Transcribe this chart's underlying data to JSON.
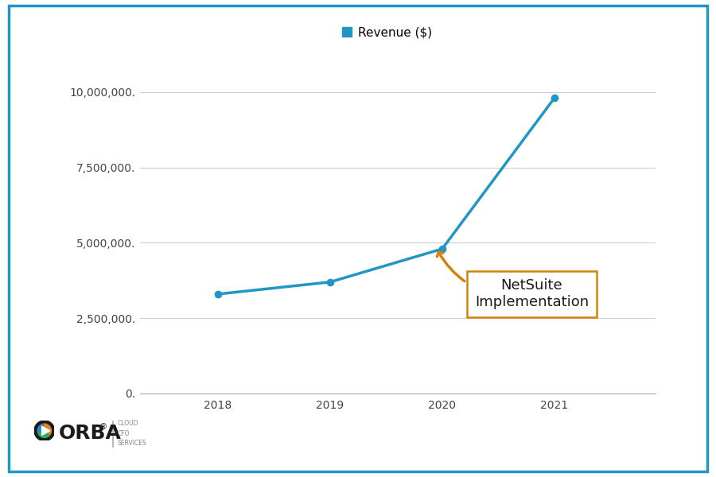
{
  "years": [
    2018,
    2019,
    2020,
    2021
  ],
  "revenue": [
    3300000,
    3700000,
    4800000,
    9800000
  ],
  "line_color": "#2196C4",
  "line_width": 2.5,
  "marker_size": 6,
  "legend_label": "Revenue ($)",
  "ylim": [
    0,
    11000000
  ],
  "yticks": [
    0,
    2500000,
    5000000,
    7500000,
    10000000
  ],
  "ytick_labels": [
    "0.",
    "2,500,000.",
    "5,000,000.",
    "7,500,000.",
    "10,000,000."
  ],
  "xticks": [
    2018,
    2019,
    2020,
    2021
  ],
  "annotation_text": "NetSuite\nImplementation",
  "annotation_box_edge_color": "#D4820A",
  "arrow_color": "#D4820A",
  "border_color": "#2196C4",
  "background_color": "#FFFFFF",
  "grid_color": "#CCCCCC",
  "tick_fontsize": 10,
  "legend_fontsize": 11,
  "annotation_fontsize": 13
}
